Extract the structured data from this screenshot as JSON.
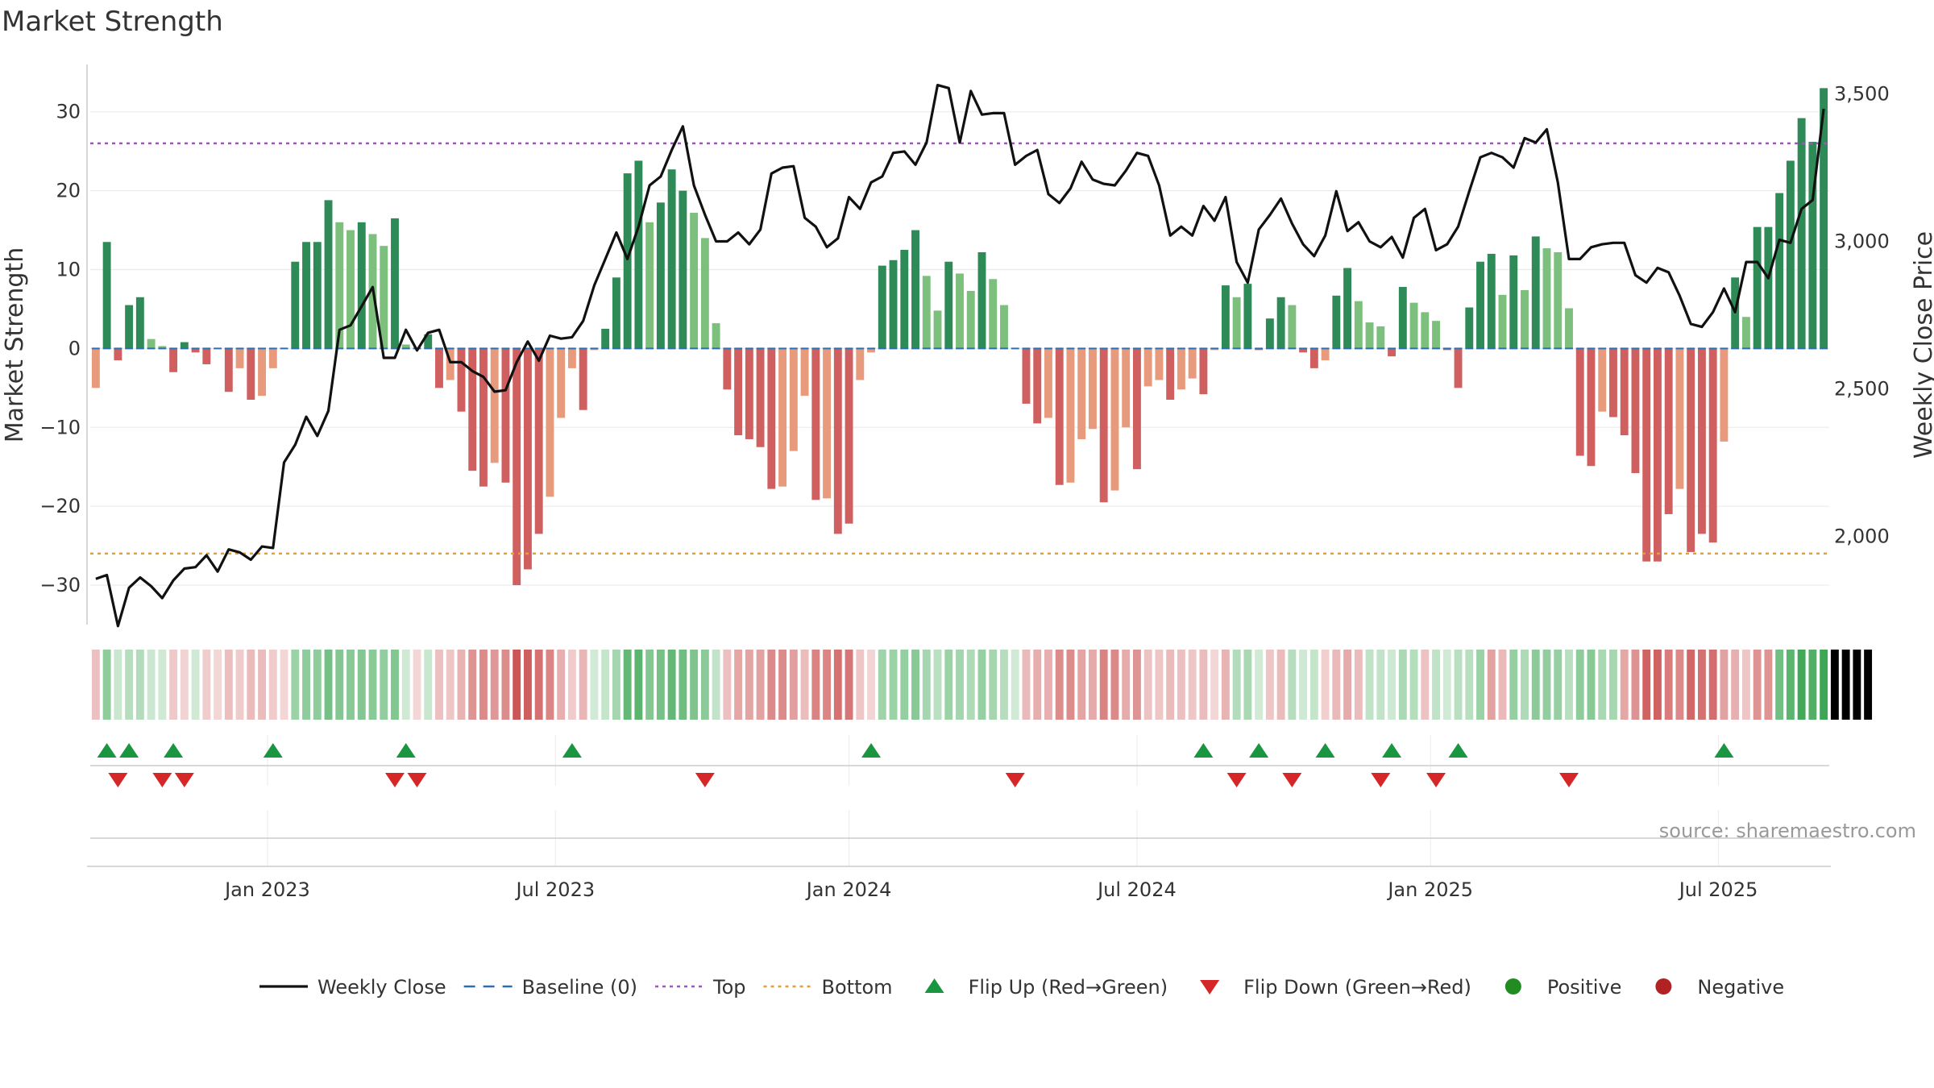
{
  "chart_data": {
    "type": "bar",
    "title": "Market Strength",
    "ylabel_left": "Market Strength",
    "ylabel_right": "Weekly Close Price",
    "ylim_left": [
      -35,
      36
    ],
    "ylim_right": [
      1700,
      3600
    ],
    "yticks_left": [
      30,
      20,
      10,
      0,
      -10,
      -20,
      -30
    ],
    "yticks_left_labels": [
      "30",
      "20",
      "10",
      "0",
      "−10",
      "−20",
      "−30"
    ],
    "yticks_right": [
      3500,
      3000,
      2500,
      2000
    ],
    "yticks_right_labels": [
      "3,500",
      "3,000",
      "2,500",
      "2,000"
    ],
    "top_line": 26,
    "bottom_line": -26,
    "x_range": [
      0,
      157
    ],
    "x_ticks": [
      {
        "label": "Jan 2023",
        "week": 16
      },
      {
        "label": "Jul 2023",
        "week": 42
      },
      {
        "label": "Jan 2024",
        "week": 68.5
      },
      {
        "label": "Jul 2024",
        "week": 94.5
      },
      {
        "label": "Jan 2025",
        "week": 121
      },
      {
        "label": "Jul 2025",
        "week": 147
      }
    ],
    "strength": [
      -5,
      13.5,
      -1.5,
      5.5,
      6.5,
      1.2,
      0.3,
      -3,
      0.8,
      -0.5,
      -2,
      0,
      -5.5,
      -2.5,
      -6.5,
      -6,
      -2.5,
      0,
      11,
      13.5,
      13.5,
      18.8,
      16,
      15,
      16,
      14.5,
      13,
      16.5,
      0.5,
      0,
      1.8,
      -5,
      -4,
      -8,
      -15.5,
      -17.5,
      -14.5,
      -17,
      -30,
      -28,
      -23.5,
      -18.8,
      -8.8,
      -2.5,
      -7.8,
      -0.2,
      2.5,
      9,
      22.2,
      23.8,
      16,
      18.5,
      22.7,
      20,
      17.2,
      14,
      3.2,
      -5.2,
      -11,
      -11.5,
      -12.5,
      -17.8,
      -17.5,
      -13,
      -6,
      -19.2,
      -19,
      -23.5,
      -22.2,
      -4,
      -0.5,
      10.5,
      11.2,
      12.5,
      15,
      9.2,
      4.8,
      11,
      9.5,
      7.3,
      12.2,
      8.8,
      5.5,
      0,
      -7,
      -9.5,
      -8.8,
      -17.3,
      -17,
      -11.5,
      -10.2,
      -19.5,
      -18,
      -10,
      -15.3,
      -4.8,
      -4,
      -6.5,
      -5.2,
      -3.8,
      -5.8,
      -0.2,
      8,
      6.5,
      8.2,
      -0.2,
      3.8,
      6.5,
      5.5,
      -0.5,
      -2.5,
      -1.5,
      6.7,
      10.2,
      6,
      3.3,
      2.8,
      -1,
      7.8,
      5.8,
      4.6,
      3.5,
      -0.2,
      -5,
      5.2,
      11,
      12,
      6.8,
      11.8,
      7.4,
      14.2,
      12.7,
      12.2,
      5.1,
      -13.6,
      -14.9,
      -8,
      -8.7,
      -11,
      -15.8,
      -27,
      -27,
      -21,
      -17.8,
      -25.8,
      -23.5,
      -24.6,
      -11.8,
      9,
      4,
      15.4,
      15.4,
      19.7,
      23.8,
      29.2,
      26.2,
      33
    ],
    "weekly_close": [
      1855,
      1868,
      1695,
      1825,
      1860,
      1830,
      1790,
      1850,
      1890,
      1895,
      1935,
      1880,
      1955,
      1945,
      1920,
      1965,
      1960,
      2250,
      2310,
      2405,
      2340,
      2425,
      2700,
      2715,
      2780,
      2845,
      2605,
      2605,
      2700,
      2630,
      2690,
      2700,
      2590,
      2590,
      2560,
      2540,
      2490,
      2495,
      2590,
      2660,
      2595,
      2680,
      2670,
      2675,
      2730,
      2850,
      2940,
      3030,
      2940,
      3050,
      3190,
      3220,
      3310,
      3390,
      3190,
      3090,
      3000,
      3000,
      3030,
      2990,
      3040,
      3230,
      3250,
      3255,
      3080,
      3050,
      2980,
      3010,
      3150,
      3110,
      3200,
      3220,
      3300,
      3305,
      3260,
      3335,
      3530,
      3520,
      3335,
      3510,
      3430,
      3435,
      3435,
      3260,
      3290,
      3310,
      3160,
      3130,
      3180,
      3270,
      3210,
      3195,
      3190,
      3240,
      3300,
      3290,
      3190,
      3020,
      3050,
      3020,
      3120,
      3070,
      3150,
      2930,
      2860,
      3040,
      3090,
      3145,
      3060,
      2990,
      2950,
      3020,
      3170,
      3035,
      3065,
      3000,
      2980,
      3015,
      2945,
      3080,
      3110,
      2970,
      2990,
      3050,
      3170,
      3285,
      3300,
      3285,
      3250,
      3350,
      3335,
      3380,
      3200,
      2940,
      2940,
      2980,
      2990,
      2995,
      2995,
      2885,
      2860,
      2910,
      2895,
      2815,
      2720,
      2710,
      2760,
      2840,
      2760,
      2930,
      2930,
      2875,
      3005,
      2995,
      3110,
      3140,
      3450
    ],
    "regime": [
      -1,
      1,
      1,
      1,
      1,
      1,
      1,
      -1,
      -1,
      1,
      -1,
      -1,
      -1,
      -1,
      -1,
      -1,
      -1,
      -1,
      1,
      1,
      1,
      1,
      1,
      1,
      1,
      1,
      1,
      1,
      1,
      -1,
      1,
      -1,
      -1,
      -1,
      -1,
      -1,
      -1,
      -1,
      -1,
      -1,
      -1,
      -1,
      -1,
      -1,
      -1,
      1,
      1,
      1,
      1,
      1,
      1,
      1,
      1,
      1,
      1,
      1,
      1,
      -1,
      -1,
      -1,
      -1,
      -1,
      -1,
      -1,
      -1,
      -1,
      -1,
      -1,
      -1,
      -1,
      -1,
      1,
      1,
      1,
      1,
      1,
      1,
      1,
      1,
      1,
      1,
      1,
      1,
      1,
      -1,
      -1,
      -1,
      -1,
      -1,
      -1,
      -1,
      -1,
      -1,
      -1,
      -1,
      -1,
      -1,
      -1,
      -1,
      -1,
      -1,
      -1,
      -1,
      1,
      1,
      1,
      -1,
      -1,
      1,
      1,
      1,
      -1,
      -1,
      -1,
      -1,
      1,
      1,
      1,
      1,
      1,
      -1,
      1,
      1,
      1,
      1,
      1,
      -1,
      -1,
      1,
      1,
      1,
      1,
      1,
      1,
      1,
      1,
      1,
      1,
      -1,
      -1,
      -1,
      -1,
      -1,
      -1,
      -1,
      -1,
      -1,
      -1,
      -1,
      -1,
      -1,
      -1,
      1,
      1,
      1,
      1,
      1,
      1,
      1,
      1,
      1
    ],
    "flip_up_weeks": [
      1,
      3,
      7,
      16,
      28,
      43,
      70,
      100,
      105,
      111,
      117,
      123,
      147
    ],
    "flip_down_weeks": [
      2,
      6,
      8,
      27,
      29,
      55,
      83,
      103,
      108,
      116,
      121,
      133
    ],
    "series_colors": {
      "positive_strong": "#2e8b57",
      "positive_light": "#7dbf7d",
      "negative_strong": "#d06060",
      "negative_light": "#e89a7c",
      "weekly_close": "#111111",
      "baseline": "#2f6fb0",
      "top": "#9b59b6",
      "bottom": "#e0a040",
      "flip_up": "#1a9641",
      "flip_down": "#d62728",
      "positive_dot": "#228b22",
      "negative_dot": "#b22222"
    },
    "legend": [
      {
        "key": "weekly_close",
        "label": "Weekly Close",
        "symbol": "line"
      },
      {
        "key": "baseline",
        "label": "Baseline (0)",
        "symbol": "dash"
      },
      {
        "key": "top",
        "label": "Top",
        "symbol": "dot"
      },
      {
        "key": "bottom",
        "label": "Bottom",
        "symbol": "dot"
      },
      {
        "key": "flip_up",
        "label": "Flip Up (Red→Green)",
        "symbol": "tri-up"
      },
      {
        "key": "flip_down",
        "label": "Flip Down (Green→Red)",
        "symbol": "tri-down"
      },
      {
        "key": "positive_dot",
        "label": "Positive",
        "symbol": "circle"
      },
      {
        "key": "negative_dot",
        "label": "Negative",
        "symbol": "circle"
      }
    ],
    "legend_position": "bottom-center",
    "annotation": "source: sharemaestro.com"
  }
}
